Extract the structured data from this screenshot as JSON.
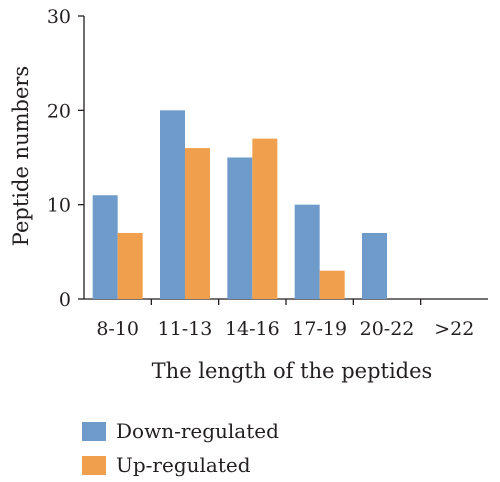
{
  "chart_data": {
    "type": "bar",
    "categories": [
      "8-10",
      "11-13",
      "14-16",
      "17-19",
      "20-22",
      ">22"
    ],
    "series": [
      {
        "name": "Down-regulated",
        "values": [
          11,
          20,
          15,
          10,
          7,
          0
        ],
        "color": "#6f9bcb"
      },
      {
        "name": "Up-regulated",
        "values": [
          7,
          16,
          17,
          3,
          0,
          0
        ],
        "color": "#f0a04c"
      }
    ],
    "xlabel": "The length of the peptides",
    "ylabel": "Peptide numbers",
    "ylim": [
      0,
      30
    ],
    "yticks": [
      0,
      10,
      20,
      30
    ],
    "grid": false,
    "legend_position": "bottom-left"
  }
}
